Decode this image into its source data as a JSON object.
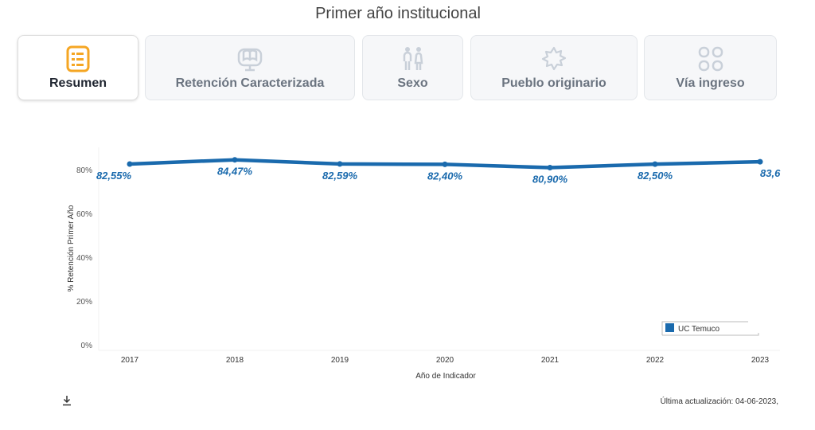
{
  "title": "Primer año institucional",
  "tabs": [
    {
      "label": "Resumen",
      "icon": "list-icon",
      "active": true
    },
    {
      "label": "Retención Caracterizada",
      "icon": "monitor-book-icon"
    },
    {
      "label": "Sexo",
      "icon": "people-icon"
    },
    {
      "label": "Pueblo originario",
      "icon": "flower-icon"
    },
    {
      "label": "Vía ingreso",
      "icon": "grid-icon"
    }
  ],
  "footer": {
    "updated": "Última actualización: 04-06-2023,",
    "download_icon": "download-icon"
  },
  "colors": {
    "series": "#1a6aad",
    "accent": "#f5a623"
  },
  "chart_data": {
    "type": "line",
    "x": [
      "2017",
      "2018",
      "2019",
      "2020",
      "2021",
      "2022",
      "2023"
    ],
    "series": [
      {
        "name": "UC Temuco",
        "values": [
          82.55,
          84.47,
          82.59,
          82.4,
          80.9,
          82.5,
          83.6
        ],
        "labels": [
          "82,55%",
          "84,47%",
          "82,59%",
          "82,40%",
          "80,90%",
          "82,50%",
          "83,6"
        ]
      }
    ],
    "ylabel": "% Retención Primer Año",
    "xlabel": "Año de Indicador",
    "yticks": [
      "0%",
      "20%",
      "40%",
      "60%",
      "80%"
    ],
    "ylim": [
      0,
      90
    ],
    "legend": "bottom-right"
  }
}
